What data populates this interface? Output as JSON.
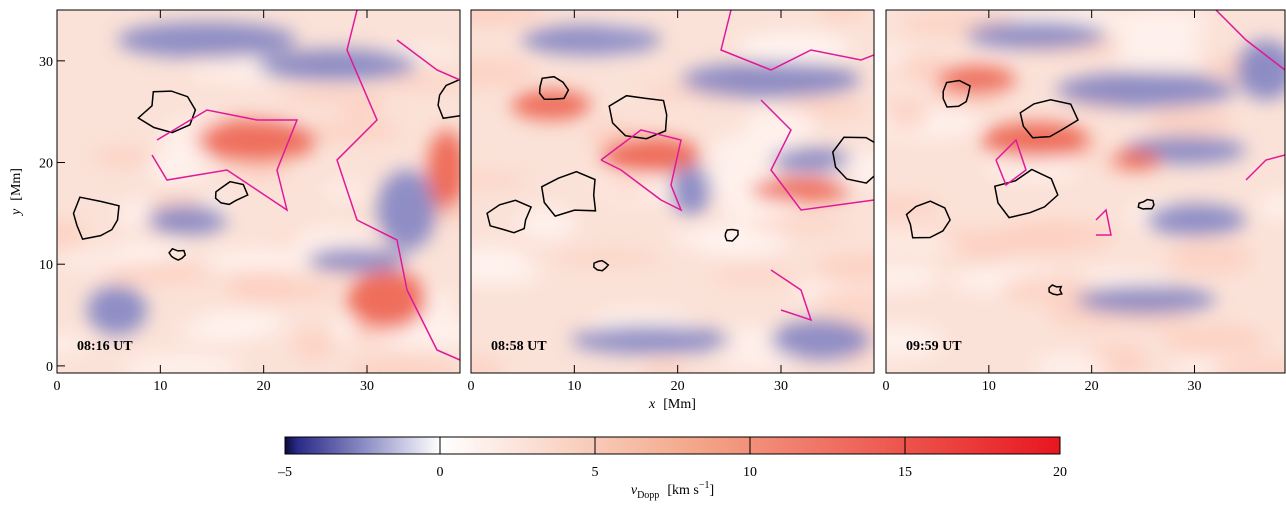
{
  "chart_data": [
    {
      "type": "heatmap",
      "label": "08:16 UT",
      "xlim": [
        0,
        39
      ],
      "ylim": [
        -0.7,
        35
      ],
      "xticks": [
        0,
        10,
        20,
        30
      ],
      "yticks": [
        0,
        10,
        20,
        30
      ],
      "ylabel_symbol": "y",
      "ylabel_unit": "[Mm]"
    },
    {
      "type": "heatmap",
      "label": "08:58 UT",
      "xlim": [
        0,
        39
      ],
      "ylim": [
        -0.7,
        35
      ],
      "xticks": [
        0,
        10,
        20,
        30
      ],
      "xlabel_symbol": "x",
      "xlabel_unit": "[Mm]"
    },
    {
      "type": "heatmap",
      "label": "09:59 UT",
      "xlim": [
        0,
        38.8
      ],
      "ylim": [
        -0.7,
        35
      ],
      "xticks": [
        0,
        10,
        20,
        30
      ]
    },
    {
      "type": "colorbar",
      "clim": [
        -5,
        20
      ],
      "ticks": [
        {
          "value": -5,
          "label": "–5"
        },
        0,
        5,
        10,
        15,
        20
      ],
      "colormap": [
        {
          "value": -5,
          "color": "#0a0a3c"
        },
        {
          "value": -4.6,
          "color": "#2a2a88"
        },
        {
          "value": -2.5,
          "color": "#8a8ac4"
        },
        {
          "value": 0,
          "color": "#ffffff"
        },
        {
          "value": 8,
          "color": "#f4a98c"
        },
        {
          "value": 20,
          "color": "#e8161e"
        }
      ],
      "label_symbol": "v",
      "label_subscript": "Dopp",
      "label_unit": "[km s",
      "label_unit_exponent": "−1",
      "label_unit_close": "]"
    }
  ]
}
